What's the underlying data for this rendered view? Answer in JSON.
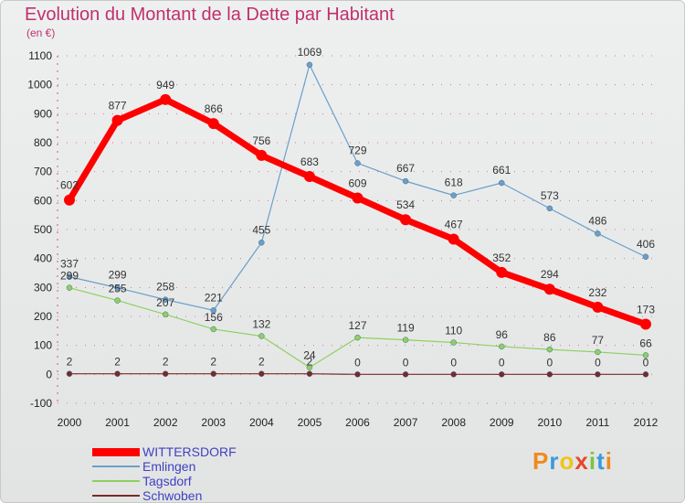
{
  "title": "Evolution du Montant de la Dette par Habitant",
  "subtitle": "(en €)",
  "logo_text": "Proxiti",
  "colors": {
    "title": "#c0306d",
    "grid": "#e24a8a",
    "wittersdorf": "#ff0000",
    "emlingen": "#6b9fc9",
    "tagsdorf": "#8fd060",
    "schwoben": "#7a2a2a",
    "legend_text": "#4040c0"
  },
  "chart_data": {
    "type": "line",
    "title": "Evolution du Montant de la Dette par Habitant",
    "ylabel": "(en €)",
    "xlabel": "",
    "x": [
      "2000",
      "2001",
      "2002",
      "2003",
      "2004",
      "2005",
      "2006",
      "2007",
      "2008",
      "2009",
      "2010",
      "2011",
      "2012"
    ],
    "ylim": [
      -100,
      1100
    ],
    "yticks": [
      "-100",
      "0",
      "100",
      "200",
      "300",
      "400",
      "500",
      "600",
      "700",
      "800",
      "900",
      "1000",
      "1100"
    ],
    "grid": "horizontal dashed",
    "legend_position": "bottom-left",
    "series": [
      {
        "name": "WITTERSDORF",
        "color": "#ff0000",
        "values": [
          602,
          877,
          949,
          866,
          756,
          683,
          609,
          534,
          467,
          352,
          294,
          232,
          173
        ],
        "labels": [
          "602",
          "877",
          "949",
          "866",
          "756",
          "683",
          "609",
          "534",
          "467",
          "352",
          "294",
          "232",
          "173"
        ]
      },
      {
        "name": "Emlingen",
        "color": "#6b9fc9",
        "values": [
          337,
          299,
          258,
          221,
          455,
          1069,
          729,
          667,
          618,
          661,
          573,
          486,
          406
        ],
        "labels": [
          "337",
          "299",
          "258",
          "221",
          "455",
          "1069",
          "729",
          "667",
          "618",
          "661",
          "573",
          "486",
          "406"
        ]
      },
      {
        "name": "Tagsdorf",
        "color": "#8fd060",
        "values": [
          299,
          255,
          207,
          156,
          132,
          24,
          127,
          119,
          110,
          96,
          86,
          77,
          66
        ],
        "labels": [
          "299",
          "255",
          "207",
          "156",
          "132",
          "24",
          "127",
          "119",
          "110",
          "96",
          "86",
          "77",
          "66"
        ]
      },
      {
        "name": "Schwoben",
        "color": "#7a2a2a",
        "values": [
          2,
          2,
          2,
          2,
          2,
          2,
          0,
          0,
          0,
          0,
          0,
          0,
          0
        ],
        "labels": [
          "2",
          "2",
          "2",
          "2",
          "2",
          "2",
          "0",
          "0",
          "0",
          "0",
          "0",
          "0",
          "0"
        ]
      }
    ]
  }
}
